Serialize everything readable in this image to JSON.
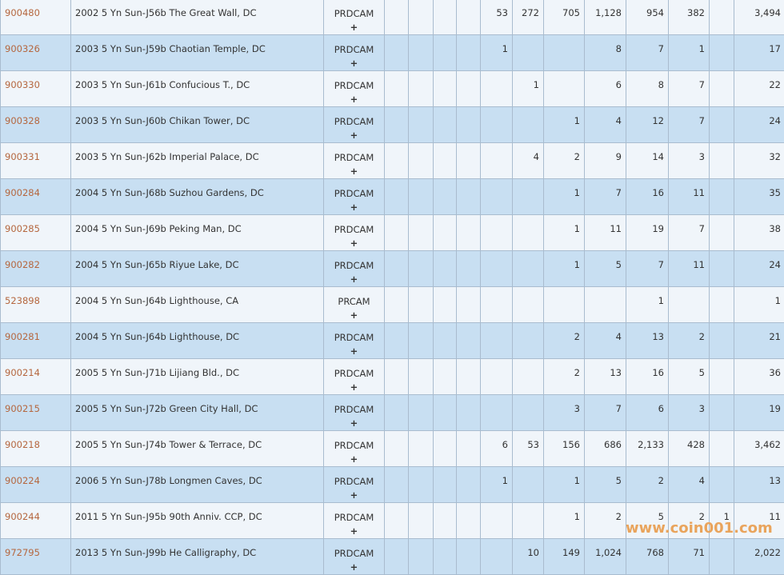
{
  "plus_label": "+",
  "watermark": "www.coin001.com",
  "colors": {
    "row_light": "#f0f5fa",
    "row_blue": "#c8dff2",
    "id_link": "#b5673f",
    "border": "#a9bccf"
  },
  "rows": [
    {
      "id": "900480",
      "desc": "2002 5 Yn Sun-J56b The Great Wall, DC",
      "grade": "PRDCAM",
      "values": [
        "",
        "",
        "",
        "",
        "53",
        "272",
        "705",
        "1,128",
        "954",
        "382",
        "",
        "3,494"
      ]
    },
    {
      "id": "900326",
      "desc": "2003 5 Yn Sun-J59b Chaotian Temple, DC",
      "grade": "PRDCAM",
      "values": [
        "",
        "",
        "",
        "",
        "1",
        "",
        "",
        "8",
        "7",
        "1",
        "",
        "17"
      ]
    },
    {
      "id": "900330",
      "desc": "2003 5 Yn Sun-J61b Confucious T., DC",
      "grade": "PRDCAM",
      "values": [
        "",
        "",
        "",
        "",
        "",
        "1",
        "",
        "6",
        "8",
        "7",
        "",
        "22"
      ]
    },
    {
      "id": "900328",
      "desc": "2003 5 Yn Sun-J60b Chikan Tower, DC",
      "grade": "PRDCAM",
      "values": [
        "",
        "",
        "",
        "",
        "",
        "",
        "1",
        "4",
        "12",
        "7",
        "",
        "24"
      ]
    },
    {
      "id": "900331",
      "desc": "2003 5 Yn Sun-J62b Imperial Palace, DC",
      "grade": "PRDCAM",
      "values": [
        "",
        "",
        "",
        "",
        "",
        "4",
        "2",
        "9",
        "14",
        "3",
        "",
        "32"
      ]
    },
    {
      "id": "900284",
      "desc": "2004 5 Yn Sun-J68b Suzhou Gardens, DC",
      "grade": "PRDCAM",
      "values": [
        "",
        "",
        "",
        "",
        "",
        "",
        "1",
        "7",
        "16",
        "11",
        "",
        "35"
      ]
    },
    {
      "id": "900285",
      "desc": "2004 5 Yn Sun-J69b Peking Man, DC",
      "grade": "PRDCAM",
      "values": [
        "",
        "",
        "",
        "",
        "",
        "",
        "1",
        "11",
        "19",
        "7",
        "",
        "38"
      ]
    },
    {
      "id": "900282",
      "desc": "2004 5 Yn Sun-J65b Riyue Lake, DC",
      "grade": "PRDCAM",
      "values": [
        "",
        "",
        "",
        "",
        "",
        "",
        "1",
        "5",
        "7",
        "11",
        "",
        "24"
      ]
    },
    {
      "id": "523898",
      "desc": "2004 5 Yn Sun-J64b Lighthouse, CA",
      "grade": "PRCAM",
      "values": [
        "",
        "",
        "",
        "",
        "",
        "",
        "",
        "",
        "1",
        "",
        "",
        "1"
      ]
    },
    {
      "id": "900281",
      "desc": "2004 5 Yn Sun-J64b Lighthouse, DC",
      "grade": "PRDCAM",
      "values": [
        "",
        "",
        "",
        "",
        "",
        "",
        "2",
        "4",
        "13",
        "2",
        "",
        "21"
      ]
    },
    {
      "id": "900214",
      "desc": "2005 5 Yn Sun-J71b Lijiang Bld., DC",
      "grade": "PRDCAM",
      "values": [
        "",
        "",
        "",
        "",
        "",
        "",
        "2",
        "13",
        "16",
        "5",
        "",
        "36"
      ]
    },
    {
      "id": "900215",
      "desc": "2005 5 Yn Sun-J72b Green City Hall, DC",
      "grade": "PRDCAM",
      "values": [
        "",
        "",
        "",
        "",
        "",
        "",
        "3",
        "7",
        "6",
        "3",
        "",
        "19"
      ]
    },
    {
      "id": "900218",
      "desc": "2005 5 Yn Sun-J74b Tower & Terrace, DC",
      "grade": "PRDCAM",
      "values": [
        "",
        "",
        "",
        "",
        "6",
        "53",
        "156",
        "686",
        "2,133",
        "428",
        "",
        "3,462"
      ]
    },
    {
      "id": "900224",
      "desc": "2006 5 Yn Sun-J78b Longmen Caves, DC",
      "grade": "PRDCAM",
      "values": [
        "",
        "",
        "",
        "",
        "1",
        "",
        "1",
        "5",
        "2",
        "4",
        "",
        "13"
      ]
    },
    {
      "id": "900244",
      "desc": "2011 5 Yn Sun-J95b 90th Anniv. CCP, DC",
      "grade": "PRDCAM",
      "values": [
        "",
        "",
        "",
        "",
        "",
        "",
        "1",
        "2",
        "5",
        "2",
        "1",
        "11"
      ]
    },
    {
      "id": "972795",
      "desc": "2013 5 Yn Sun-J99b He Calligraphy, DC",
      "grade": "PRDCAM",
      "values": [
        "",
        "",
        "",
        "",
        "",
        "10",
        "149",
        "1,024",
        "768",
        "71",
        "",
        "2,022"
      ]
    }
  ]
}
